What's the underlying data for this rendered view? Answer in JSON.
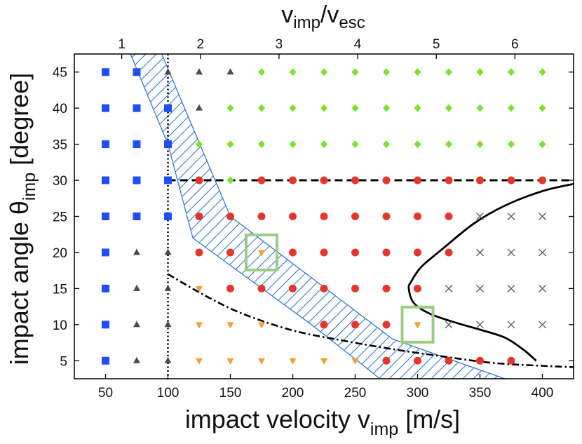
{
  "chart_data": {
    "type": "scatter",
    "title": "",
    "xlabel": "impact velocity v",
    "xlabel_sub": "imp",
    "xlabel_unit": "[m/s]",
    "ylabel": "impact angle θ",
    "ylabel_sub": "imp",
    "ylabel_unit": "[degree]",
    "top_xlabel_num": "v",
    "top_xlabel_num_sub": "imp",
    "top_xlabel_sep": "/v",
    "top_xlabel_den_sub": "esc",
    "xlim": [
      25,
      425
    ],
    "ylim": [
      2.5,
      47.5
    ],
    "x_ticks": [
      50,
      100,
      150,
      200,
      250,
      300,
      350,
      400
    ],
    "x_tick_labels": [
      "50",
      "100",
      "150",
      "200",
      "250",
      "300",
      "350",
      "400"
    ],
    "y_ticks": [
      5,
      10,
      15,
      20,
      25,
      30,
      35,
      40,
      45
    ],
    "y_tick_labels": [
      "5",
      "10",
      "15",
      "20",
      "25",
      "30",
      "35",
      "40",
      "45"
    ],
    "top_ticks": [
      1,
      2,
      3,
      4,
      5,
      6
    ],
    "top_tick_labels": [
      "1",
      "2",
      "3",
      "4",
      "5",
      "6"
    ],
    "escape_velocity": 63,
    "grid": false,
    "colors": {
      "square": "#1f4ff2",
      "triangle_up": "#4a4a4a",
      "diamond": "#7be12c",
      "circle": "#e8352b",
      "triangle_down": "#f0a030",
      "cross": "#555555",
      "band": "#2f78d6",
      "highlight": "#9ccc84",
      "curve": "#000000"
    },
    "series": [
      {
        "name": "squares",
        "marker": "square",
        "points": [
          [
            50,
            5
          ],
          [
            50,
            10
          ],
          [
            50,
            15
          ],
          [
            50,
            20
          ],
          [
            50,
            25
          ],
          [
            50,
            30
          ],
          [
            50,
            35
          ],
          [
            50,
            40
          ],
          [
            50,
            45
          ],
          [
            75,
            25
          ],
          [
            75,
            30
          ],
          [
            75,
            35
          ],
          [
            75,
            40
          ],
          [
            75,
            45
          ],
          [
            100,
            25
          ],
          [
            100,
            30
          ],
          [
            100,
            35
          ],
          [
            100,
            40
          ]
        ]
      },
      {
        "name": "up-triangles",
        "marker": "triangle_up",
        "points": [
          [
            75,
            5
          ],
          [
            75,
            10
          ],
          [
            75,
            15
          ],
          [
            75,
            20
          ],
          [
            100,
            5
          ],
          [
            100,
            10
          ],
          [
            100,
            15
          ],
          [
            100,
            20
          ],
          [
            100,
            45
          ],
          [
            125,
            40
          ],
          [
            125,
            45
          ],
          [
            150,
            45
          ]
        ]
      },
      {
        "name": "diamonds",
        "marker": "diamond",
        "points": [
          [
            125,
            35
          ],
          [
            150,
            30
          ],
          [
            150,
            35
          ],
          [
            150,
            40
          ],
          [
            175,
            35
          ],
          [
            175,
            40
          ],
          [
            175,
            45
          ],
          [
            200,
            35
          ],
          [
            200,
            40
          ],
          [
            200,
            45
          ],
          [
            225,
            35
          ],
          [
            225,
            40
          ],
          [
            225,
            45
          ],
          [
            250,
            35
          ],
          [
            250,
            40
          ],
          [
            250,
            45
          ],
          [
            275,
            35
          ],
          [
            275,
            40
          ],
          [
            275,
            45
          ],
          [
            300,
            35
          ],
          [
            300,
            40
          ],
          [
            300,
            45
          ],
          [
            325,
            35
          ],
          [
            325,
            40
          ],
          [
            325,
            45
          ],
          [
            350,
            35
          ],
          [
            350,
            40
          ],
          [
            350,
            45
          ],
          [
            375,
            35
          ],
          [
            375,
            40
          ],
          [
            375,
            45
          ],
          [
            400,
            35
          ],
          [
            400,
            40
          ],
          [
            400,
            45
          ]
        ]
      },
      {
        "name": "circles",
        "marker": "circle",
        "points": [
          [
            125,
            20
          ],
          [
            125,
            25
          ],
          [
            125,
            30
          ],
          [
            150,
            15
          ],
          [
            150,
            20
          ],
          [
            150,
            25
          ],
          [
            175,
            15
          ],
          [
            175,
            25
          ],
          [
            175,
            30
          ],
          [
            200,
            15
          ],
          [
            200,
            20
          ],
          [
            200,
            25
          ],
          [
            200,
            30
          ],
          [
            225,
            10
          ],
          [
            225,
            15
          ],
          [
            225,
            20
          ],
          [
            225,
            25
          ],
          [
            225,
            30
          ],
          [
            250,
            10
          ],
          [
            250,
            15
          ],
          [
            250,
            20
          ],
          [
            250,
            25
          ],
          [
            250,
            30
          ],
          [
            275,
            5
          ],
          [
            275,
            10
          ],
          [
            275,
            15
          ],
          [
            275,
            20
          ],
          [
            275,
            25
          ],
          [
            275,
            30
          ],
          [
            300,
            5
          ],
          [
            300,
            15
          ],
          [
            300,
            20
          ],
          [
            300,
            25
          ],
          [
            300,
            30
          ],
          [
            325,
            5
          ],
          [
            325,
            20
          ],
          [
            325,
            25
          ],
          [
            325,
            30
          ],
          [
            350,
            5
          ],
          [
            350,
            30
          ],
          [
            375,
            5
          ],
          [
            375,
            30
          ],
          [
            400,
            30
          ]
        ]
      },
      {
        "name": "down-triangles",
        "marker": "triangle_down",
        "points": [
          [
            125,
            5
          ],
          [
            125,
            10
          ],
          [
            125,
            15
          ],
          [
            150,
            5
          ],
          [
            150,
            10
          ],
          [
            175,
            5
          ],
          [
            175,
            10
          ],
          [
            175,
            20
          ],
          [
            200,
            5
          ],
          [
            225,
            5
          ],
          [
            250,
            5
          ],
          [
            300,
            10
          ]
        ]
      },
      {
        "name": "crosses",
        "marker": "cross",
        "points": [
          [
            325,
            10
          ],
          [
            325,
            15
          ],
          [
            350,
            10
          ],
          [
            350,
            15
          ],
          [
            350,
            20
          ],
          [
            350,
            25
          ],
          [
            375,
            10
          ],
          [
            375,
            15
          ],
          [
            375,
            20
          ],
          [
            375,
            25
          ],
          [
            400,
            10
          ],
          [
            400,
            15
          ],
          [
            400,
            20
          ],
          [
            400,
            25
          ]
        ]
      }
    ],
    "band_polygon": [
      [
        70,
        47.5
      ],
      [
        95,
        47.5
      ],
      [
        150,
        25
      ],
      [
        280,
        8
      ],
      [
        370,
        2.5
      ],
      [
        270,
        2.5
      ],
      [
        215,
        10
      ],
      [
        120,
        22
      ],
      [
        100,
        35
      ]
    ],
    "highlight_boxes": [
      [
        175,
        20
      ],
      [
        300,
        10
      ]
    ],
    "dotted_vline_x": 100,
    "dashed_hline_y": 30,
    "dashdot_curve": [
      [
        100,
        17
      ],
      [
        130,
        14
      ],
      [
        160,
        11.5
      ],
      [
        200,
        9.2
      ],
      [
        240,
        7.8
      ],
      [
        280,
        6.6
      ],
      [
        320,
        5.6
      ],
      [
        360,
        4.7
      ],
      [
        400,
        4.3
      ],
      [
        425,
        4.1
      ]
    ],
    "solid_curve": [
      [
        425,
        29.5
      ],
      [
        400,
        28.5
      ],
      [
        370,
        26.5
      ],
      [
        345,
        24
      ],
      [
        320,
        20.5
      ],
      [
        303,
        18
      ],
      [
        295,
        16
      ],
      [
        293,
        15
      ],
      [
        297,
        13
      ],
      [
        310,
        11.5
      ],
      [
        330,
        10.3
      ],
      [
        350,
        9.3
      ],
      [
        370,
        8.2
      ],
      [
        385,
        6.5
      ],
      [
        395,
        5
      ]
    ]
  }
}
